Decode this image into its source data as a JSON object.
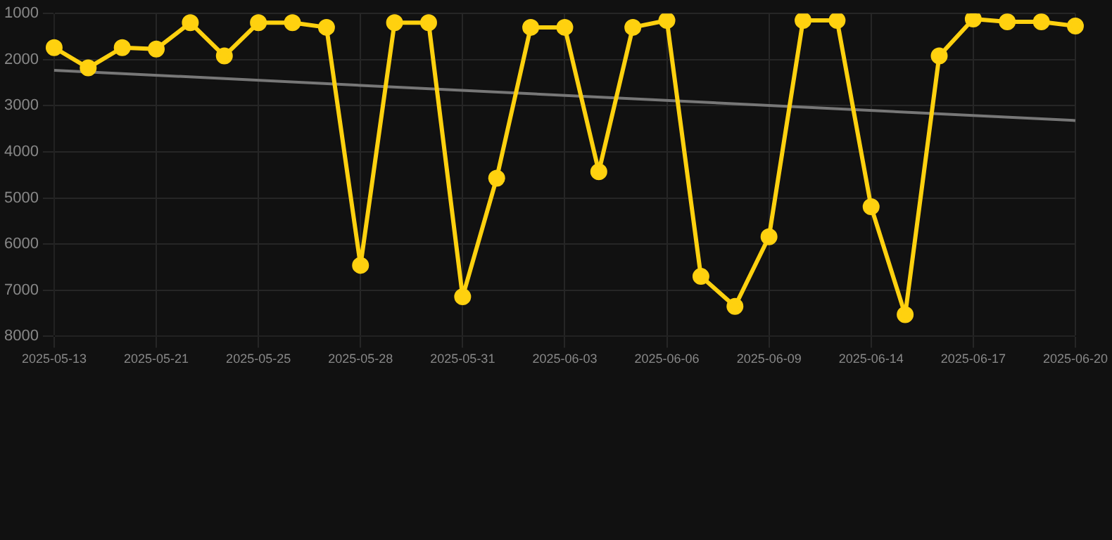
{
  "chart_data": {
    "type": "line",
    "categories": [
      "2025-05-13",
      null,
      null,
      "2025-05-21",
      null,
      null,
      "2025-05-25",
      null,
      null,
      "2025-05-28",
      null,
      null,
      "2025-05-31",
      null,
      null,
      "2025-06-03",
      null,
      null,
      "2025-06-06",
      null,
      null,
      "2025-06-09",
      null,
      null,
      "2025-06-14",
      null,
      null,
      "2025-06-17",
      null,
      null,
      "2025-06-20"
    ],
    "series": [
      {
        "color": "#ffd10f",
        "values": [
          1740,
          2180,
          1740,
          1770,
          1200,
          1920,
          1200,
          1200,
          1300,
          6460,
          1200,
          1200,
          7140,
          4570,
          1300,
          1300,
          4430,
          1300,
          1150,
          6700,
          7350,
          5840,
          1150,
          1150,
          5190,
          7530,
          1920,
          1120,
          1180,
          1180,
          1270
        ],
        "marker": "circle"
      },
      {
        "color": "#777777",
        "values": [
          2230,
          null,
          null,
          null,
          null,
          null,
          null,
          null,
          null,
          null,
          null,
          null,
          null,
          null,
          null,
          null,
          null,
          null,
          null,
          null,
          null,
          null,
          null,
          null,
          null,
          null,
          null,
          null,
          null,
          null,
          3320
        ],
        "marker": "none"
      }
    ],
    "ylim": [
      8000,
      1000
    ],
    "yticks": [
      1000,
      2000,
      3000,
      4000,
      5000,
      6000,
      7000,
      8000
    ],
    "grid": true,
    "legend": false
  }
}
